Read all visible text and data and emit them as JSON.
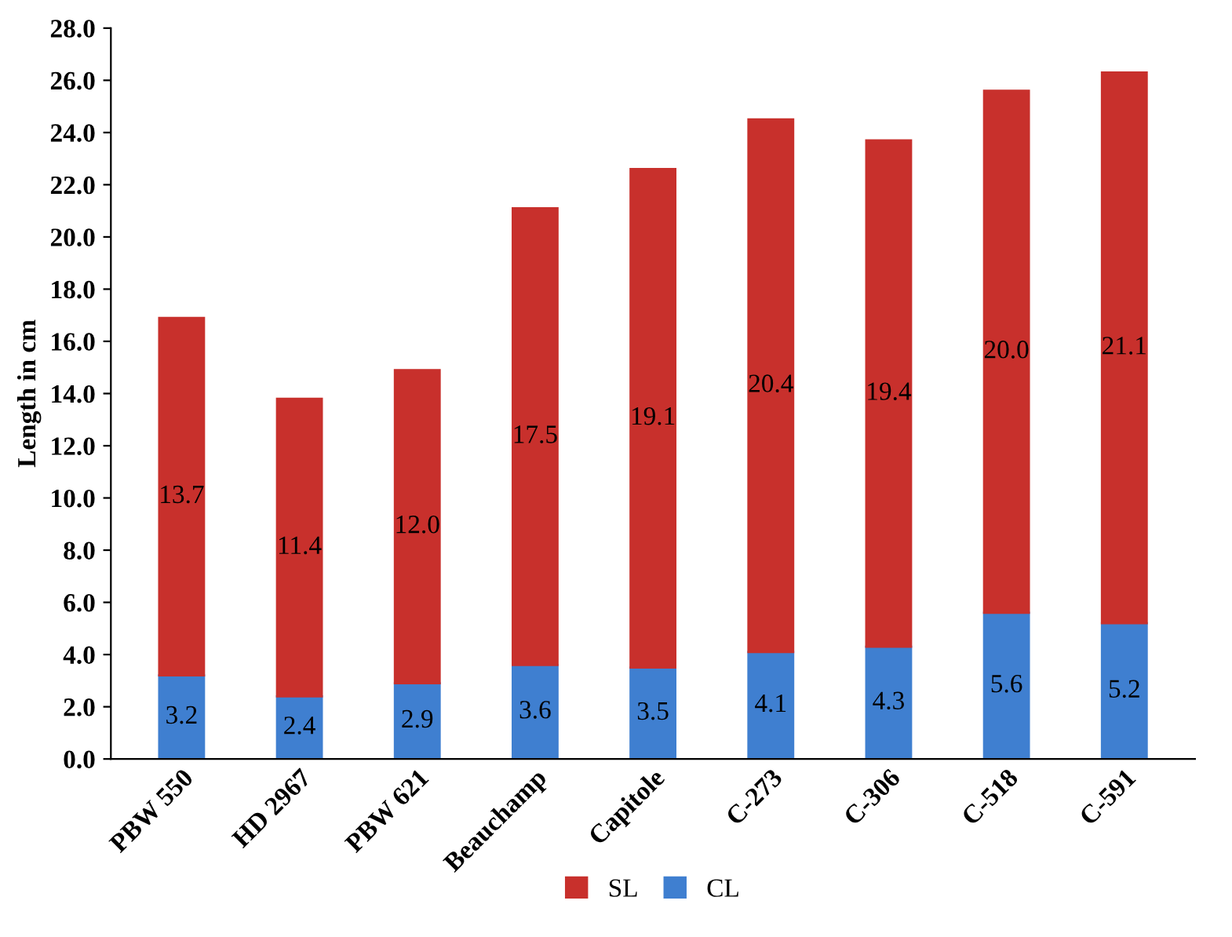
{
  "chart_data": {
    "type": "bar",
    "stacked": true,
    "ylabel": "Length in cm",
    "categories": [
      "PBW 550",
      "HD 2967",
      "PBW 621",
      "Beauchamp",
      "Capitole",
      "C-273",
      "C-306",
      "C-518",
      "C-591"
    ],
    "series": [
      {
        "name": "CL",
        "color": "#3f7fd0",
        "values": [
          3.2,
          2.4,
          2.9,
          3.6,
          3.5,
          4.1,
          4.3,
          5.6,
          5.2
        ],
        "value_labels": [
          "3.2",
          "2.4",
          "2.9",
          "3.6",
          "3.5",
          "4.1",
          "4.3",
          "5.6",
          "5.2"
        ]
      },
      {
        "name": "SL",
        "color": "#c8302c",
        "values": [
          13.7,
          11.4,
          12.0,
          17.5,
          19.1,
          20.4,
          19.4,
          20.0,
          21.1
        ],
        "value_labels": [
          "13.7",
          "11.4",
          "12.0",
          "17.5",
          "19.1",
          "20.4",
          "19.4",
          "20.0",
          "21.1"
        ]
      }
    ],
    "ylim": [
      0,
      28
    ],
    "yticks": [
      {
        "value": 0,
        "label": "0.0"
      },
      {
        "value": 2,
        "label": "2.0"
      },
      {
        "value": 4,
        "label": "4.0"
      },
      {
        "value": 6,
        "label": "6.0"
      },
      {
        "value": 8,
        "label": "8.0"
      },
      {
        "value": 10,
        "label": "10.0"
      },
      {
        "value": 12,
        "label": "12.0"
      },
      {
        "value": 14,
        "label": "14.0"
      },
      {
        "value": 16,
        "label": "16.0"
      },
      {
        "value": 18,
        "label": "18.0"
      },
      {
        "value": 20,
        "label": "20.0"
      },
      {
        "value": 22,
        "label": "22.0"
      },
      {
        "value": 24,
        "label": "24.0"
      },
      {
        "value": 26,
        "label": "26.0"
      },
      {
        "value": 28,
        "label": "28.0"
      }
    ],
    "grid": false,
    "legend": "bottom"
  }
}
